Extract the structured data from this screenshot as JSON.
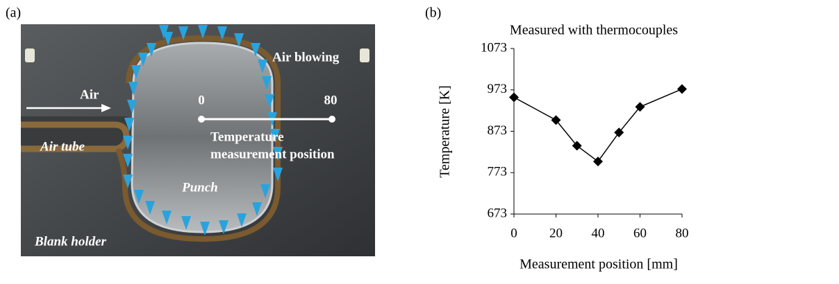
{
  "panel_labels": [
    "(a)",
    "(b)"
  ],
  "photo": {
    "air_blowing": "Air blowing",
    "air": "Air",
    "start": "0",
    "end": "80",
    "position_line1": "Temperature",
    "position_line2": "measurement position",
    "air_tube": "Air tube",
    "punch": "Punch",
    "blank_holder": "Blank holder"
  },
  "chart_data": {
    "type": "line",
    "title": "Measured with thermocouples",
    "x_label": "Measurement position [mm]",
    "y_label": "Temperature [K]",
    "x": [
      0,
      20,
      30,
      40,
      50,
      60,
      80
    ],
    "values": [
      955,
      900,
      838,
      800,
      870,
      932,
      975
    ],
    "color": "#000000",
    "xlim": [
      0,
      80
    ],
    "xticks": [
      0,
      20,
      40,
      60,
      80
    ],
    "ylim": [
      673,
      1073
    ],
    "yticks": [
      673,
      773,
      873,
      973,
      1073
    ]
  }
}
